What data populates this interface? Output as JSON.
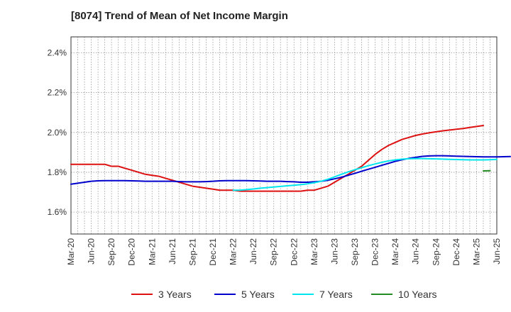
{
  "chart_data": {
    "type": "line",
    "title": "[8074]  Trend of Mean of Net Income Margin",
    "xlabel": "",
    "ylabel": "",
    "grid": true,
    "legend_position": "bottom",
    "x_ticks": [
      "Mar-20",
      "Jun-20",
      "Sep-20",
      "Dec-20",
      "Mar-21",
      "Jun-21",
      "Sep-21",
      "Dec-21",
      "Mar-22",
      "Jun-22",
      "Sep-22",
      "Dec-22",
      "Mar-23",
      "Jun-23",
      "Sep-23",
      "Dec-23",
      "Mar-24",
      "Jun-24",
      "Sep-24",
      "Dec-24",
      "Mar-25",
      "Jun-25"
    ],
    "y_ticks": [
      {
        "value": 1.6,
        "label": "1.6%"
      },
      {
        "value": 1.8,
        "label": "1.8%"
      },
      {
        "value": 2.0,
        "label": "2.0%"
      },
      {
        "value": 2.2,
        "label": "2.2%"
      },
      {
        "value": 2.4,
        "label": "2.4%"
      }
    ],
    "ylim": [
      1.49,
      2.48
    ],
    "series": [
      {
        "name": "3 Years",
        "color": "#dd1111",
        "start_index": 0,
        "values": [
          1.84,
          1.84,
          1.84,
          1.84,
          1.84,
          1.84,
          1.83,
          1.83,
          1.82,
          1.81,
          1.8,
          1.79,
          1.785,
          1.78,
          1.77,
          1.76,
          1.75,
          1.74,
          1.73,
          1.725,
          1.72,
          1.715,
          1.71,
          1.71,
          1.71,
          1.705,
          1.705,
          1.705,
          1.705,
          1.705,
          1.705,
          1.705,
          1.705,
          1.705,
          1.705,
          1.71,
          1.71,
          1.72,
          1.73,
          1.75,
          1.77,
          1.79,
          1.81,
          1.83,
          1.86,
          1.89,
          1.915,
          1.935,
          1.95,
          1.965,
          1.975,
          1.985,
          1.992,
          1.998,
          2.003,
          2.008,
          2.012,
          2.016,
          2.02,
          2.025,
          2.03,
          2.035
        ]
      },
      {
        "name": "5 Years",
        "color": "#0000cc",
        "start_index": 0,
        "values": [
          1.74,
          1.745,
          1.75,
          1.755,
          1.757,
          1.758,
          1.758,
          1.758,
          1.758,
          1.757,
          1.756,
          1.755,
          1.755,
          1.755,
          1.755,
          1.755,
          1.753,
          1.752,
          1.752,
          1.752,
          1.753,
          1.755,
          1.757,
          1.758,
          1.758,
          1.758,
          1.758,
          1.757,
          1.756,
          1.755,
          1.755,
          1.755,
          1.753,
          1.752,
          1.75,
          1.75,
          1.752,
          1.755,
          1.76,
          1.767,
          1.775,
          1.785,
          1.795,
          1.805,
          1.815,
          1.825,
          1.835,
          1.845,
          1.855,
          1.863,
          1.87,
          1.875,
          1.88,
          1.882,
          1.883,
          1.883,
          1.882,
          1.881,
          1.88,
          1.879,
          1.878,
          1.877,
          1.877,
          1.877,
          1.878,
          1.879
        ]
      },
      {
        "name": "7 Years",
        "color": "#00e5ee",
        "start_index": 24,
        "values": [
          1.71,
          1.71,
          1.713,
          1.716,
          1.72,
          1.723,
          1.726,
          1.729,
          1.732,
          1.735,
          1.738,
          1.742,
          1.748,
          1.755,
          1.765,
          1.777,
          1.79,
          1.802,
          1.813,
          1.823,
          1.833,
          1.842,
          1.85,
          1.857,
          1.862,
          1.866,
          1.868,
          1.869,
          1.869,
          1.868,
          1.867,
          1.866,
          1.865,
          1.864,
          1.863,
          1.862,
          1.862,
          1.862,
          1.863,
          1.865
        ]
      },
      {
        "name": "10 Years",
        "color": "#228b22",
        "start_index": 61,
        "values": [
          1.807,
          1.808
        ]
      }
    ]
  }
}
